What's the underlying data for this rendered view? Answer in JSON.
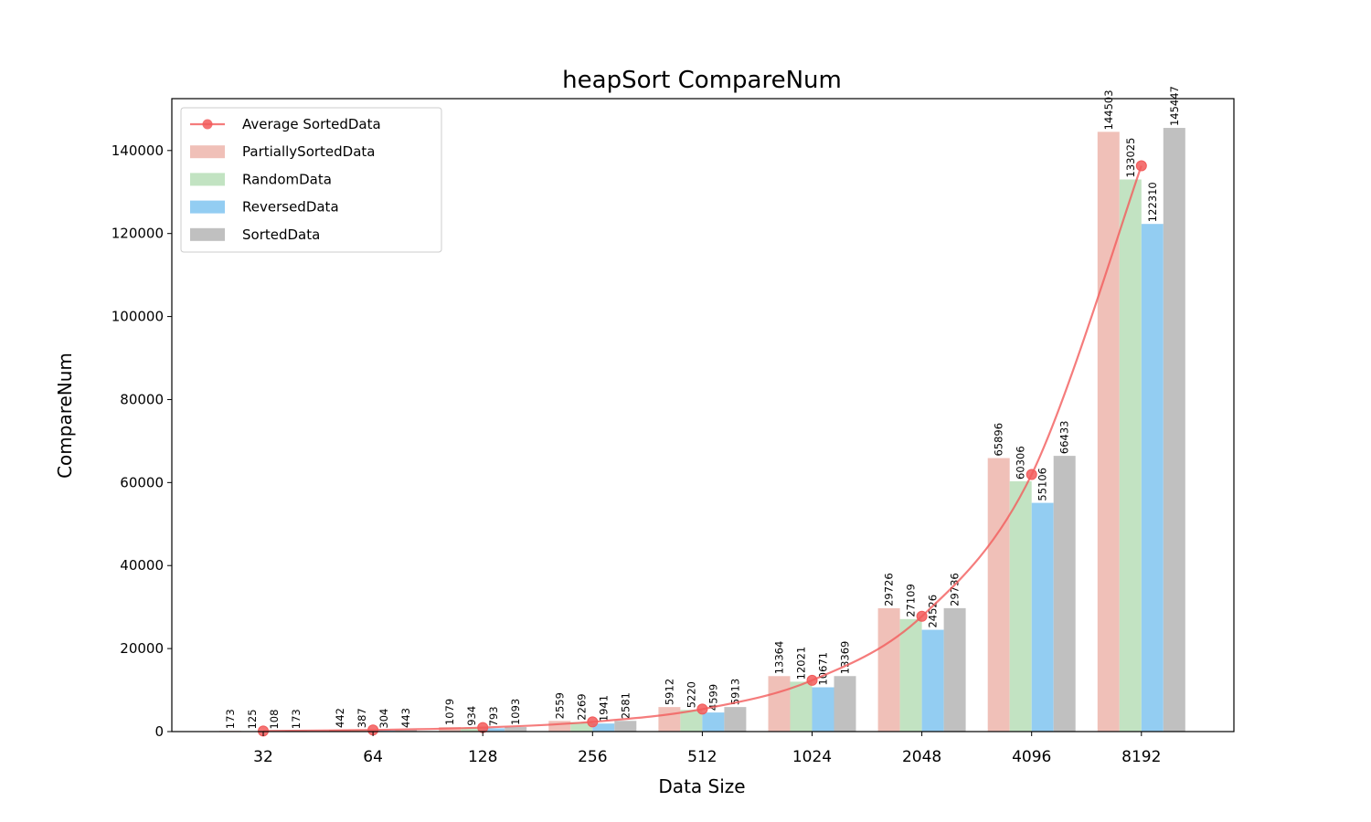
{
  "chart_data": {
    "type": "bar",
    "title": "heapSort CompareNum",
    "xlabel": "Data Size",
    "ylabel": "CompareNum",
    "categories": [
      "32",
      "64",
      "128",
      "256",
      "512",
      "1024",
      "2048",
      "4096",
      "8192"
    ],
    "series": [
      {
        "name": "PartiallySortedData",
        "color": "#f0c0b8",
        "values": [
          173,
          442,
          1079,
          2559,
          5912,
          13364,
          29726,
          65896,
          144503
        ]
      },
      {
        "name": "RandomData",
        "color": "#c2e3c2",
        "values": [
          125,
          387,
          934,
          2269,
          5220,
          12021,
          27109,
          60306,
          133025
        ]
      },
      {
        "name": "ReversedData",
        "color": "#93cdf2",
        "values": [
          108,
          304,
          793,
          1941,
          4599,
          10671,
          24526,
          55106,
          122310
        ]
      },
      {
        "name": "SortedData",
        "color": "#c0c0c0",
        "values": [
          173,
          443,
          1093,
          2581,
          5913,
          13369,
          29736,
          66433,
          145447
        ]
      }
    ],
    "line": {
      "name": "Average SortedData",
      "color": "#f25b5b",
      "values": [
        144.75,
        394,
        974.75,
        2337.5,
        5411,
        12356.25,
        27774.25,
        61935.25,
        136321.25
      ]
    },
    "ylim": [
      0,
      152500
    ],
    "yticks": [
      0,
      20000,
      40000,
      60000,
      80000,
      100000,
      120000,
      140000
    ],
    "legend": "top-left",
    "grid": false
  }
}
